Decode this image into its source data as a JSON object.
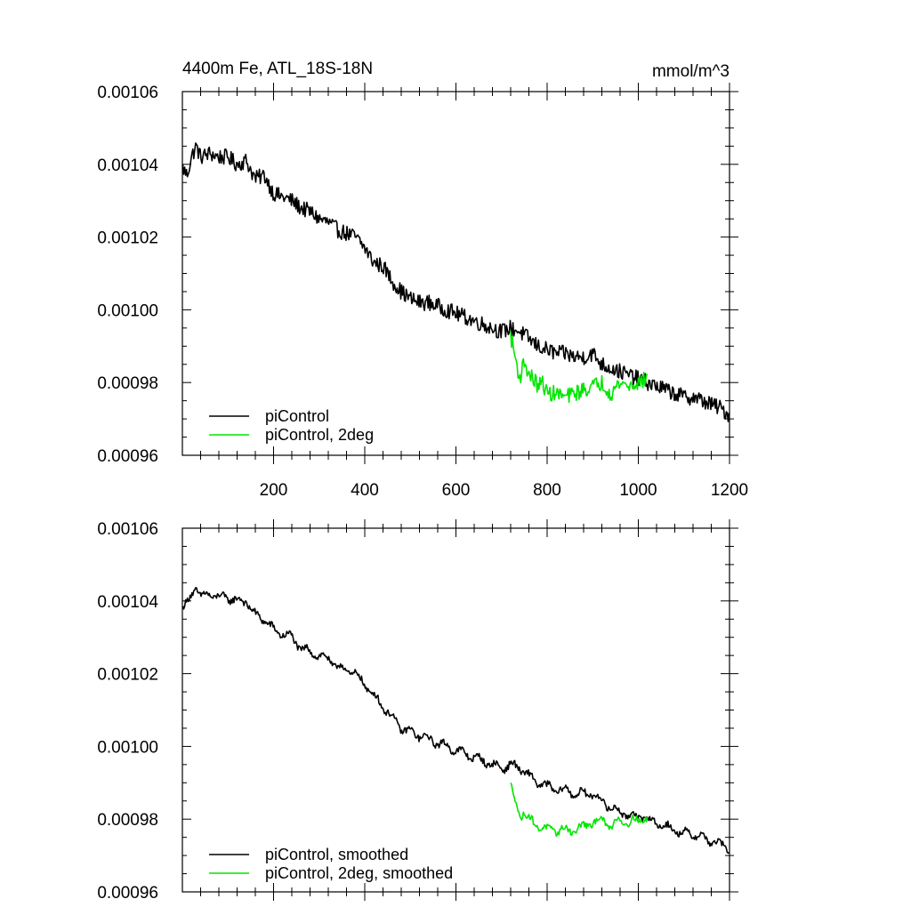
{
  "chart_data": [
    {
      "type": "line",
      "title": "4400m Fe, ATL_18S-18N",
      "units": "mmol/m^3",
      "xlim": [
        0,
        1200
      ],
      "ylim": [
        0.00096,
        0.00106
      ],
      "x_ticks": [
        200,
        400,
        600,
        800,
        1000,
        1200
      ],
      "x_tick_labels": [
        "200",
        "400",
        "600",
        "800",
        "1000",
        "1200"
      ],
      "y_ticks": [
        0.00096,
        0.00098,
        0.001,
        0.00102,
        0.00104,
        0.00106
      ],
      "y_tick_labels": [
        "0.00096",
        "0.00098",
        "0.00100",
        "0.00102",
        "0.00104",
        "0.00106"
      ],
      "grid": false,
      "legend_position": "bottom-left",
      "series": [
        {
          "name": "piControl",
          "color": "#000000",
          "x": [
            1,
            10,
            20,
            30,
            40,
            60,
            80,
            100,
            120,
            140,
            160,
            180,
            200,
            220,
            240,
            260,
            280,
            300,
            320,
            340,
            360,
            380,
            400,
            420,
            440,
            460,
            480,
            500,
            520,
            540,
            560,
            580,
            600,
            620,
            640,
            660,
            680,
            700,
            720,
            740,
            760,
            780,
            800,
            820,
            840,
            860,
            880,
            900,
            920,
            940,
            960,
            980,
            1000,
            1020,
            1040,
            1060,
            1080,
            1100,
            1120,
            1140,
            1160,
            1180,
            1200
          ],
          "values": [
            0.001039,
            0.001037,
            0.001042,
            0.001045,
            0.001042,
            0.001043,
            0.001042,
            0.001042,
            0.00104,
            0.001041,
            0.001036,
            0.001037,
            0.001032,
            0.001031,
            0.00103,
            0.001028,
            0.001027,
            0.001025,
            0.001024,
            0.001022,
            0.001021,
            0.00102,
            0.001017,
            0.001013,
            0.001012,
            0.001008,
            0.001005,
            0.001003,
            0.001002,
            0.001002,
            0.001001,
            0.001,
            0.000999,
            0.000998,
            0.000997,
            0.000996,
            0.000995,
            0.000994,
            0.000995,
            0.000994,
            0.000992,
            0.00099,
            0.000989,
            0.000988,
            0.000988,
            0.000987,
            0.000987,
            0.000988,
            0.000985,
            0.000984,
            0.000983,
            0.000982,
            0.000981,
            0.00098,
            0.000979,
            0.000978,
            0.000977,
            0.000976,
            0.000976,
            0.000975,
            0.000974,
            0.000973,
            0.000971
          ]
        },
        {
          "name": "piControl, 2deg",
          "color": "#00e600",
          "x": [
            720,
            730,
            740,
            750,
            760,
            770,
            780,
            790,
            800,
            820,
            840,
            860,
            880,
            900,
            920,
            940,
            960,
            980,
            1000,
            1020
          ],
          "values": [
            0.000993,
            0.000987,
            0.000981,
            0.000986,
            0.000982,
            0.000981,
            0.000979,
            0.00098,
            0.000977,
            0.000977,
            0.000976,
            0.000977,
            0.000978,
            0.000979,
            0.00098,
            0.000977,
            0.00098,
            0.000979,
            0.00098,
            0.000981
          ]
        }
      ]
    },
    {
      "type": "line",
      "title": "",
      "xlim": [
        0,
        1200
      ],
      "ylim": [
        0.00096,
        0.00106
      ],
      "x_ticks": [
        200,
        400,
        600,
        800,
        1000,
        1200
      ],
      "y_ticks": [
        0.00096,
        0.00098,
        0.001,
        0.00102,
        0.00104,
        0.00106
      ],
      "y_tick_labels": [
        "0.00096",
        "0.00098",
        "0.00100",
        "0.00102",
        "0.00104",
        "0.00106"
      ],
      "grid": false,
      "legend_position": "bottom-left",
      "series": [
        {
          "name": "piControl, smoothed",
          "color": "#000000",
          "x": [
            1,
            10,
            20,
            30,
            40,
            60,
            80,
            100,
            120,
            140,
            160,
            180,
            200,
            220,
            240,
            260,
            280,
            300,
            320,
            340,
            360,
            380,
            400,
            420,
            440,
            460,
            480,
            500,
            520,
            540,
            560,
            580,
            600,
            620,
            640,
            660,
            680,
            700,
            720,
            740,
            760,
            780,
            800,
            820,
            840,
            860,
            880,
            900,
            920,
            940,
            960,
            980,
            1000,
            1020,
            1040,
            1060,
            1080,
            1100,
            1120,
            1140,
            1160,
            1180,
            1200
          ],
          "values": [
            0.001038,
            0.001039,
            0.001042,
            0.001044,
            0.001041,
            0.001042,
            0.001041,
            0.001041,
            0.00104,
            0.00104,
            0.001036,
            0.001035,
            0.001032,
            0.001031,
            0.00103,
            0.001027,
            0.001026,
            0.001025,
            0.001024,
            0.001022,
            0.001021,
            0.00102,
            0.001017,
            0.001014,
            0.001011,
            0.001008,
            0.001005,
            0.001004,
            0.001003,
            0.001002,
            0.001001,
            0.001,
            0.000999,
            0.000998,
            0.000997,
            0.000996,
            0.000995,
            0.000994,
            0.000995,
            0.000994,
            0.000992,
            0.00099,
            0.000989,
            0.000988,
            0.000988,
            0.000987,
            0.000987,
            0.000987,
            0.000985,
            0.000983,
            0.000982,
            0.000981,
            0.000981,
            0.00098,
            0.000979,
            0.000978,
            0.000977,
            0.000976,
            0.000976,
            0.000975,
            0.000974,
            0.000973,
            0.000972
          ]
        },
        {
          "name": "piControl, 2deg, smoothed",
          "color": "#00e600",
          "x": [
            720,
            730,
            740,
            750,
            760,
            770,
            780,
            790,
            800,
            820,
            840,
            860,
            880,
            900,
            920,
            940,
            960,
            980,
            1000,
            1020
          ],
          "values": [
            0.000989,
            0.000985,
            0.000981,
            0.000982,
            0.00098,
            0.000979,
            0.000978,
            0.000978,
            0.000977,
            0.000977,
            0.000977,
            0.000977,
            0.000978,
            0.000979,
            0.00098,
            0.000978,
            0.00098,
            0.000979,
            0.00098,
            0.00098
          ]
        }
      ]
    }
  ]
}
